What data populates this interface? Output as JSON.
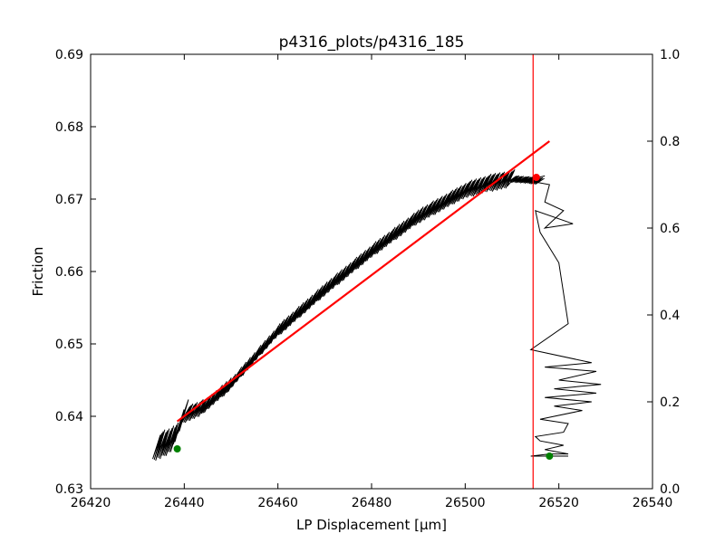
{
  "chart_data": {
    "type": "line",
    "title": "p4316_plots/p4316_185",
    "xlabel": "LP Displacement [μm]",
    "ylabel": "Friction",
    "xlim": [
      26420,
      26540
    ],
    "ylim": [
      0.63,
      0.69
    ],
    "y2lim": [
      0.0,
      1.0
    ],
    "x_ticks": [
      "26420",
      "26440",
      "26460",
      "26480",
      "26500",
      "26520",
      "26540"
    ],
    "y_ticks": [
      "0.63",
      "0.64",
      "0.65",
      "0.66",
      "0.67",
      "0.68",
      "0.69"
    ],
    "y2_ticks": [
      "0.0",
      "0.2",
      "0.4",
      "0.6",
      "0.8",
      "1.0"
    ],
    "grid": false,
    "series": [
      {
        "kind": "friction-trace",
        "axis": "left",
        "color": "#000000",
        "x_start": 26434,
        "x_end": 26516,
        "y_start": 0.6355,
        "y_end": 0.6728,
        "band_amplitude": 0.0012,
        "x": [
          26434,
          26436,
          26438,
          26440,
          26444,
          26450,
          26460,
          26470,
          26480,
          26490,
          26500,
          26505,
          26510,
          26512,
          26514,
          26516
        ],
        "y": [
          0.6358,
          0.6362,
          0.6372,
          0.6402,
          0.6412,
          0.6445,
          0.6518,
          0.6575,
          0.6628,
          0.6676,
          0.6712,
          0.6722,
          0.6728,
          0.6727,
          0.6726,
          0.6725
        ]
      },
      {
        "kind": "tail-trace",
        "axis": "right",
        "color": "#000000",
        "x": [
          26517,
          26513,
          26518,
          26517,
          26521,
          26517,
          26523,
          26515,
          26516,
          26520,
          26522,
          26514,
          26527,
          26517,
          26528,
          26520,
          26529,
          26519,
          26528,
          26517,
          26527,
          26519,
          26525,
          26516,
          26522,
          26521,
          26515,
          26516,
          26521,
          26517,
          26522,
          26518,
          26514,
          26522
        ],
        "y": [
          0.72,
          0.71,
          0.7,
          0.66,
          0.64,
          0.6,
          0.61,
          0.64,
          0.59,
          0.52,
          0.38,
          0.32,
          0.29,
          0.28,
          0.27,
          0.25,
          0.24,
          0.23,
          0.22,
          0.21,
          0.2,
          0.19,
          0.18,
          0.16,
          0.15,
          0.13,
          0.12,
          0.11,
          0.1,
          0.09,
          0.08,
          0.08,
          0.075,
          0.075
        ]
      },
      {
        "kind": "linear-fit",
        "axis": "left",
        "color": "#ff0000",
        "x": [
          26438.5,
          26518
        ],
        "y": [
          0.6393,
          0.678
        ]
      }
    ],
    "vline": {
      "x": 26514.5,
      "color": "#ff0000"
    },
    "markers": [
      {
        "axis": "left",
        "x": 26438.5,
        "y": 0.6355,
        "color": "#008000"
      },
      {
        "axis": "left",
        "x": 26515.2,
        "y": 0.673,
        "color": "#ff0000"
      },
      {
        "axis": "right",
        "x": 26518,
        "y": 0.075,
        "color": "#008000"
      }
    ]
  }
}
